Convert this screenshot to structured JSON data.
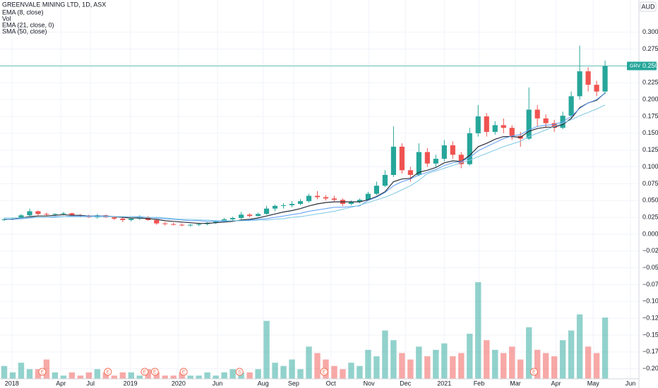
{
  "chart_data": {
    "type": "candlestick",
    "title": "GREENVALE MINING LTD, 1D, ASX",
    "indicators": [
      "EMA (8, close)",
      "Vol",
      "EMA (21, close, 0)",
      "SMA (50, close)"
    ],
    "currency": "AUD",
    "up_color": "#26a69a",
    "down_color": "#ef5350",
    "grid": true,
    "xlim": [
      0,
      75.5
    ],
    "ylim": [
      -0.215,
      0.348
    ],
    "xticks": [
      {
        "value": 1.4,
        "label": "2018"
      },
      {
        "value": 7.2,
        "label": "Apr"
      },
      {
        "value": 10.7,
        "label": "Jul"
      },
      {
        "value": 15.4,
        "label": "2019"
      },
      {
        "value": 21.1,
        "label": "2020"
      },
      {
        "value": 25.7,
        "label": "Jun"
      },
      {
        "value": 31.1,
        "label": "Aug"
      },
      {
        "value": 34.7,
        "label": "Sep"
      },
      {
        "value": 39.1,
        "label": "Oct"
      },
      {
        "value": 43.6,
        "label": "Nov"
      },
      {
        "value": 47.9,
        "label": "Dec"
      },
      {
        "value": 52.5,
        "label": "2021"
      },
      {
        "value": 56.6,
        "label": "Feb"
      },
      {
        "value": 60.9,
        "label": "Mar"
      },
      {
        "value": 65.7,
        "label": "Apr"
      },
      {
        "value": 70.1,
        "label": "May"
      },
      {
        "value": 74.5,
        "label": "Jun"
      }
    ],
    "yticks": [
      {
        "value": 0.3,
        "label": "0.300"
      },
      {
        "value": 0.275,
        "label": "0.275"
      },
      {
        "value": 0.25,
        "label": "0.250"
      },
      {
        "value": 0.225,
        "label": "0.225"
      },
      {
        "value": 0.2,
        "label": "0.200"
      },
      {
        "value": 0.175,
        "label": "0.175"
      },
      {
        "value": 0.15,
        "label": "0.150"
      },
      {
        "value": 0.125,
        "label": "0.125"
      },
      {
        "value": 0.1,
        "label": "0.100"
      },
      {
        "value": 0.075,
        "label": "0.075"
      },
      {
        "value": 0.05,
        "label": "0.050"
      },
      {
        "value": 0.025,
        "label": "0.025"
      },
      {
        "value": 0,
        "label": "0.000"
      },
      {
        "value": -0.025,
        "label": "−0.025"
      },
      {
        "value": -0.05,
        "label": "−0.050"
      },
      {
        "value": -0.075,
        "label": "−0.075"
      },
      {
        "value": -0.1,
        "label": "−0.100"
      },
      {
        "value": -0.125,
        "label": "−0.125"
      },
      {
        "value": -0.15,
        "label": "−0.150"
      },
      {
        "value": -0.175,
        "label": "−0.175"
      },
      {
        "value": -0.2,
        "label": "−0.200"
      }
    ],
    "open": [
      0.022,
      0.022,
      0.023,
      0.028,
      0.034,
      0.03,
      0.029,
      0.03,
      0.031,
      0.028,
      0.027,
      0.025,
      0.028,
      0.025,
      0.023,
      0.021,
      0.023,
      0.025,
      0.021,
      0.016,
      0.015,
      0.014,
      0.013,
      0.014,
      0.015,
      0.017,
      0.019,
      0.022,
      0.024,
      0.029,
      0.027,
      0.03,
      0.038,
      0.042,
      0.043,
      0.045,
      0.049,
      0.057,
      0.055,
      0.053,
      0.051,
      0.045,
      0.048,
      0.051,
      0.06,
      0.072,
      0.088,
      0.13,
      0.095,
      0.088,
      0.122,
      0.105,
      0.112,
      0.132,
      0.118,
      0.104,
      0.15,
      0.175,
      0.152,
      0.162,
      0.158,
      0.146,
      0.142,
      0.185,
      0.172,
      0.165,
      0.158,
      0.176,
      0.205,
      0.242,
      0.222,
      0.212
    ],
    "high": [
      0.024,
      0.025,
      0.03,
      0.038,
      0.035,
      0.032,
      0.031,
      0.033,
      0.032,
      0.03,
      0.029,
      0.03,
      0.029,
      0.027,
      0.025,
      0.024,
      0.028,
      0.027,
      0.022,
      0.018,
      0.017,
      0.016,
      0.015,
      0.017,
      0.018,
      0.021,
      0.024,
      0.026,
      0.033,
      0.031,
      0.032,
      0.042,
      0.044,
      0.046,
      0.049,
      0.052,
      0.06,
      0.064,
      0.058,
      0.057,
      0.053,
      0.05,
      0.053,
      0.063,
      0.078,
      0.095,
      0.16,
      0.135,
      0.1,
      0.135,
      0.128,
      0.118,
      0.14,
      0.138,
      0.122,
      0.158,
      0.192,
      0.18,
      0.168,
      0.172,
      0.162,
      0.152,
      0.218,
      0.192,
      0.178,
      0.17,
      0.182,
      0.212,
      0.28,
      0.248,
      0.228,
      0.258
    ],
    "low": [
      0.02,
      0.021,
      0.022,
      0.027,
      0.028,
      0.027,
      0.027,
      0.028,
      0.027,
      0.025,
      0.024,
      0.023,
      0.024,
      0.021,
      0.018,
      0.019,
      0.021,
      0.02,
      0.014,
      0.013,
      0.013,
      0.012,
      0.011,
      0.012,
      0.013,
      0.015,
      0.018,
      0.02,
      0.022,
      0.025,
      0.026,
      0.029,
      0.034,
      0.038,
      0.04,
      0.043,
      0.047,
      0.052,
      0.05,
      0.049,
      0.042,
      0.043,
      0.046,
      0.05,
      0.058,
      0.07,
      0.085,
      0.09,
      0.078,
      0.086,
      0.1,
      0.1,
      0.108,
      0.112,
      0.098,
      0.102,
      0.145,
      0.145,
      0.148,
      0.15,
      0.14,
      0.13,
      0.14,
      0.16,
      0.158,
      0.152,
      0.156,
      0.172,
      0.2,
      0.212,
      0.205,
      0.208
    ],
    "close": [
      0.022,
      0.023,
      0.028,
      0.034,
      0.03,
      0.029,
      0.03,
      0.031,
      0.028,
      0.027,
      0.025,
      0.028,
      0.025,
      0.023,
      0.021,
      0.023,
      0.025,
      0.021,
      0.016,
      0.015,
      0.014,
      0.013,
      0.014,
      0.015,
      0.017,
      0.019,
      0.022,
      0.024,
      0.029,
      0.027,
      0.03,
      0.038,
      0.042,
      0.043,
      0.045,
      0.049,
      0.057,
      0.055,
      0.053,
      0.051,
      0.045,
      0.048,
      0.051,
      0.06,
      0.072,
      0.088,
      0.13,
      0.095,
      0.088,
      0.122,
      0.105,
      0.112,
      0.132,
      0.118,
      0.104,
      0.15,
      0.175,
      0.152,
      0.162,
      0.158,
      0.146,
      0.142,
      0.185,
      0.172,
      0.165,
      0.158,
      0.176,
      0.205,
      0.242,
      0.222,
      0.212,
      0.25
    ],
    "volume_lim": [
      0,
      30
    ],
    "volume": [
      4,
      2,
      5,
      3,
      3,
      6,
      2,
      1,
      2,
      1,
      2,
      3,
      2,
      1,
      2,
      2,
      1,
      3,
      2,
      1,
      1,
      2,
      1,
      1,
      2,
      1,
      2,
      3,
      2,
      2,
      3,
      18,
      5,
      4,
      6,
      3,
      10,
      8,
      6,
      4,
      3,
      5,
      4,
      9,
      7,
      15,
      12,
      8,
      6,
      10,
      7,
      9,
      11,
      7,
      8,
      14,
      30,
      12,
      9,
      8,
      10,
      6,
      16,
      9,
      8,
      7,
      12,
      15,
      20,
      10,
      8,
      19
    ],
    "lines": [
      {
        "name": "EMA (8, close)",
        "color": "#2a2e39",
        "values": [
          0.022,
          0.022,
          0.024,
          0.026,
          0.027,
          0.027,
          0.028,
          0.029,
          0.028,
          0.028,
          0.027,
          0.027,
          0.027,
          0.026,
          0.025,
          0.024,
          0.024,
          0.023,
          0.022,
          0.02,
          0.019,
          0.018,
          0.017,
          0.016,
          0.016,
          0.017,
          0.018,
          0.019,
          0.021,
          0.022,
          0.024,
          0.027,
          0.03,
          0.033,
          0.035,
          0.038,
          0.042,
          0.045,
          0.047,
          0.048,
          0.048,
          0.048,
          0.048,
          0.051,
          0.056,
          0.063,
          0.078,
          0.082,
          0.083,
          0.092,
          0.095,
          0.099,
          0.106,
          0.109,
          0.108,
          0.117,
          0.13,
          0.135,
          0.141,
          0.145,
          0.145,
          0.144,
          0.153,
          0.157,
          0.159,
          0.159,
          0.163,
          0.172,
          0.188,
          0.195,
          0.199,
          0.21
        ]
      },
      {
        "name": "EMA (21, close, 0)",
        "color": "#5b9cf6",
        "values": [
          0.022,
          0.022,
          0.023,
          0.024,
          0.025,
          0.025,
          0.026,
          0.026,
          0.027,
          0.027,
          0.027,
          0.027,
          0.027,
          0.026,
          0.026,
          0.026,
          0.026,
          0.025,
          0.024,
          0.023,
          0.022,
          0.021,
          0.02,
          0.02,
          0.019,
          0.019,
          0.019,
          0.02,
          0.02,
          0.021,
          0.022,
          0.023,
          0.025,
          0.027,
          0.029,
          0.031,
          0.034,
          0.036,
          0.038,
          0.04,
          0.04,
          0.041,
          0.042,
          0.05,
          0.055,
          0.062,
          0.072,
          0.078,
          0.082,
          0.088,
          0.092,
          0.096,
          0.102,
          0.106,
          0.108,
          0.114,
          0.124,
          0.13,
          0.136,
          0.142,
          0.146,
          0.148,
          0.155,
          0.16,
          0.162,
          0.163,
          0.167,
          0.175,
          0.187,
          0.195,
          0.2,
          0.21
        ]
      },
      {
        "name": "SMA (50, close)",
        "color": "#7ec8e3",
        "values": [
          0.024,
          0.024,
          0.024,
          0.025,
          0.025,
          0.025,
          0.025,
          0.026,
          0.026,
          0.026,
          0.026,
          0.026,
          0.026,
          0.026,
          0.026,
          0.026,
          0.025,
          0.025,
          0.025,
          0.024,
          0.023,
          0.022,
          0.022,
          0.021,
          0.021,
          0.02,
          0.02,
          0.02,
          0.02,
          0.02,
          0.021,
          0.021,
          0.022,
          0.023,
          0.025,
          0.026,
          0.028,
          0.03,
          0.032,
          0.034,
          0.037,
          0.04,
          0.043,
          0.047,
          0.051,
          0.055,
          0.06,
          0.066,
          0.072,
          0.08,
          0.09,
          0.094,
          0.098,
          0.102,
          0.106,
          0.11,
          0.115,
          0.12,
          0.125,
          0.13,
          0.134,
          0.138,
          0.145,
          0.15,
          0.155,
          0.16,
          0.165,
          0.17,
          0.176,
          0.181,
          0.186,
          0.192
        ]
      }
    ],
    "last_price": {
      "symbol": "GRV",
      "value": 0.25,
      "label": "0.250"
    },
    "events": [
      {
        "x": 5,
        "label": "E"
      },
      {
        "x": 12.75,
        "label": "E"
      },
      {
        "x": 17.1,
        "label": "E"
      },
      {
        "x": 18.3,
        "label": "E"
      },
      {
        "x": 21.7,
        "label": "E"
      },
      {
        "x": 28.3,
        "label": "S"
      },
      {
        "x": 38.3,
        "label": "E"
      },
      {
        "x": 63.1,
        "label": "E"
      }
    ]
  }
}
